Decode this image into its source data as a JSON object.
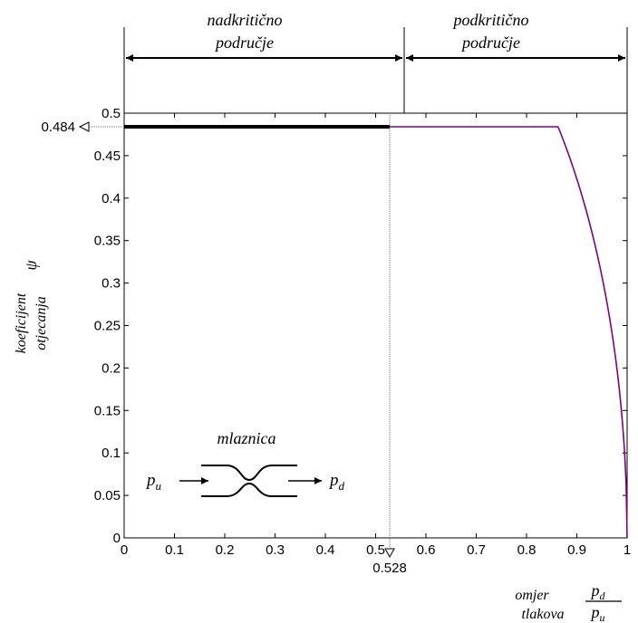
{
  "chart_data": {
    "type": "line",
    "title": "",
    "xlim": [
      0,
      1
    ],
    "ylim": [
      0,
      0.5
    ],
    "x_ticks": [
      "0",
      "0.1",
      "0.2",
      "0.3",
      "0.4",
      "0.5",
      "0.6",
      "0.7",
      "0.8",
      "0.9",
      "1"
    ],
    "y_ticks": [
      "0",
      "0.05",
      "0.1",
      "0.15",
      "0.2",
      "0.25",
      "0.3",
      "0.35",
      "0.4",
      "0.45",
      "0.5"
    ],
    "ylabel": {
      "line1": "koeficijent",
      "line2": "otjecanja",
      "symbol": "ψ"
    },
    "xlabel": {
      "line1": "omjer",
      "line2": "tlakova",
      "num": "p_d",
      "den": "p_u"
    },
    "regions": [
      {
        "line1": "nadkritično",
        "line2": "područje",
        "from": 0,
        "to": 0.528
      },
      {
        "line1": "podkritično",
        "line2": "područje",
        "from": 0.528,
        "to": 1
      }
    ],
    "critical": {
      "x": 0.528,
      "x_label": "0.528",
      "y": 0.484,
      "y_label": "0.484"
    },
    "series": [
      {
        "kind": "constant",
        "color": "#000000",
        "x": [
          0,
          0.528
        ],
        "y": [
          0.484,
          0.484
        ]
      },
      {
        "kind": "subcritical",
        "color": "#800080",
        "gamma": 1.4,
        "x": [
          0.528,
          0.55,
          0.6,
          0.65,
          0.7,
          0.75,
          0.8,
          0.85,
          0.9,
          0.95,
          0.98,
          0.99,
          1.0
        ],
        "y": [
          0.484,
          0.484,
          0.4804,
          0.4718,
          0.4575,
          0.4369,
          0.4093,
          0.3721,
          0.3209,
          0.2424,
          0.1592,
          0.1139,
          0
        ]
      }
    ],
    "inset": {
      "title": "mlaznica",
      "in_label": "p",
      "in_sub": "u",
      "out_label": "p",
      "out_sub": "d"
    },
    "grid": false
  }
}
